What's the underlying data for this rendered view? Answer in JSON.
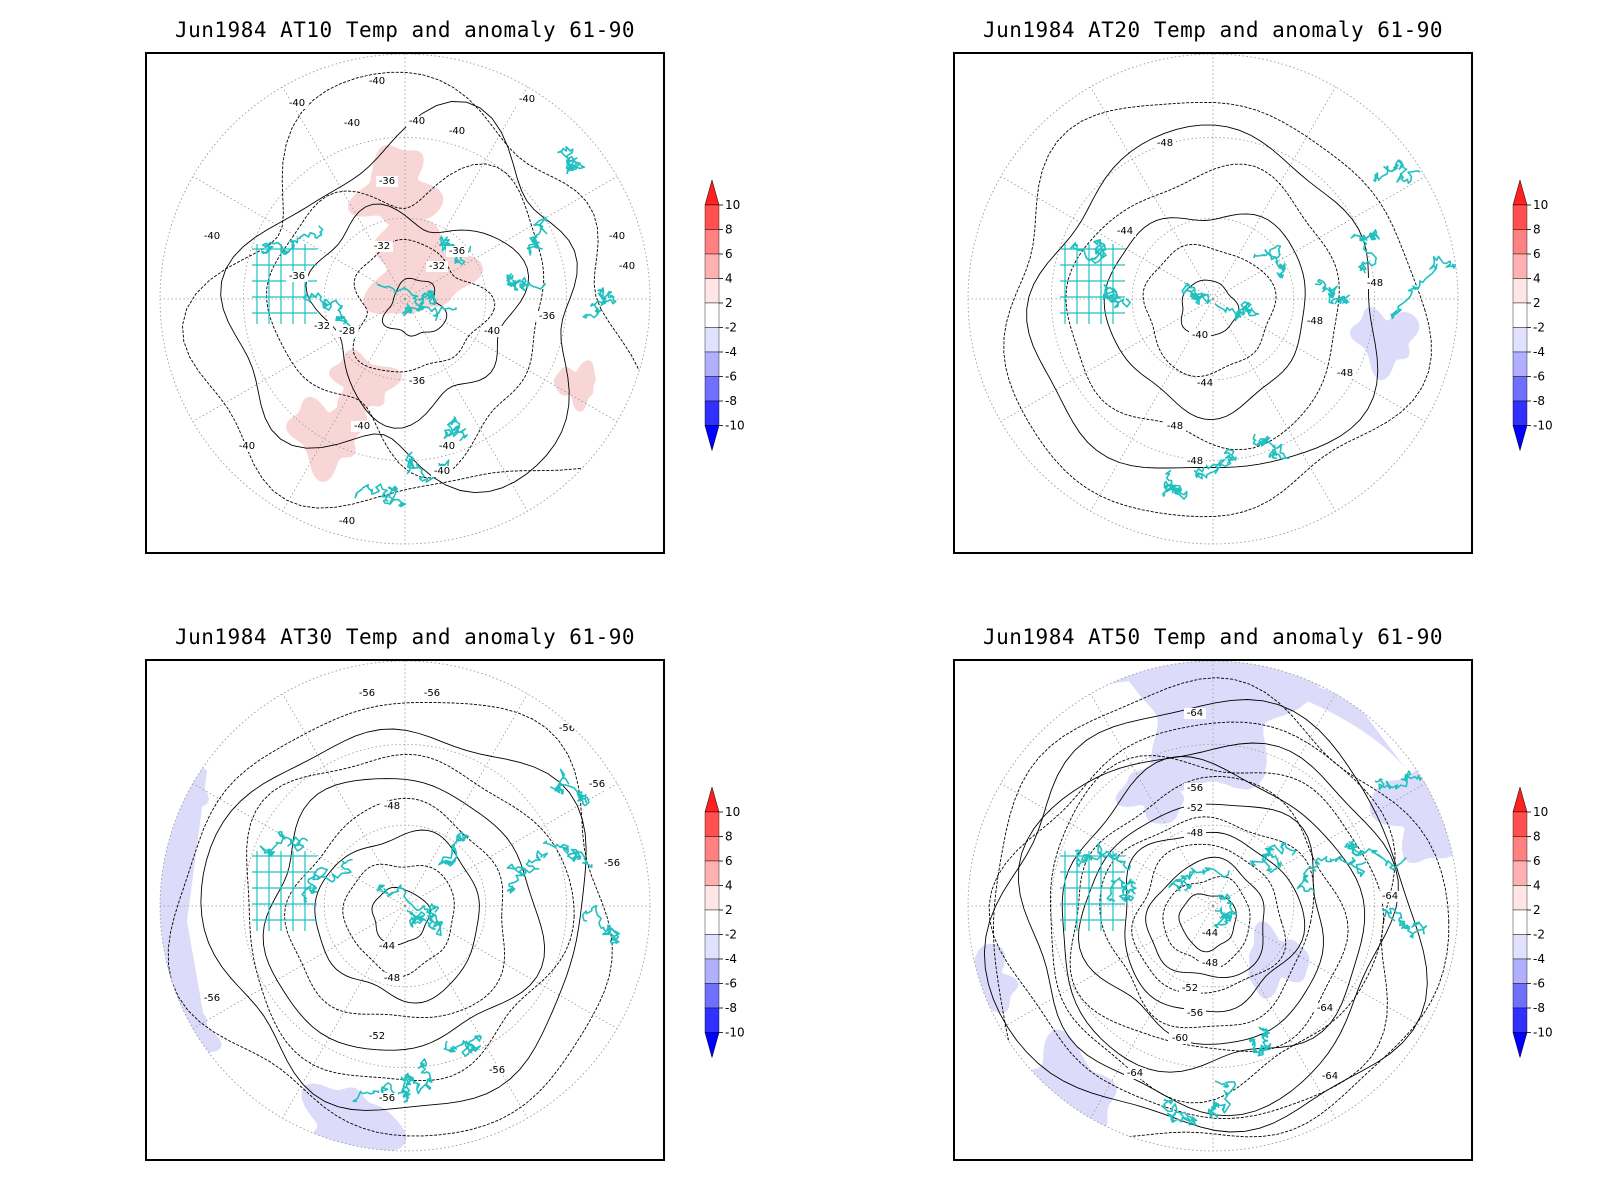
{
  "colors": {
    "coastline": "#20c0c0",
    "contour": "#000000",
    "grid": "#9a9a9a",
    "anomaly_positive_light": "#f8d6d6",
    "anomaly_negative_light": "#dcdcfa"
  },
  "colorbar": {
    "levels": [
      "10",
      "8",
      "6",
      "4",
      "2",
      "-2",
      "-4",
      "-6",
      "-8",
      "-10"
    ],
    "colors": [
      "#ff2020",
      "#ff5050",
      "#ff8080",
      "#ffb0b0",
      "#ffe6e6",
      "#ffffff",
      "#e0e0ff",
      "#b0b0ff",
      "#7070ff",
      "#3030ff",
      "#0000ff"
    ]
  },
  "panels": [
    {
      "title": "Jun1984 AT10 Temp and anomaly 61-90",
      "anomaly_sign": "positive",
      "contour_labels": [
        "-40",
        "-40",
        "-40",
        "-40",
        "-40",
        "-40",
        "-40",
        "-40",
        "-40",
        "-36",
        "-36",
        "-36",
        "-36",
        "-36",
        "-32",
        "-32",
        "-32",
        "-28",
        "-40",
        "-40",
        "-40",
        "-40",
        "-40",
        "-40"
      ]
    },
    {
      "title": "Jun1984 AT20 Temp and anomaly 61-90",
      "anomaly_sign": "negative",
      "contour_labels": [
        "-48",
        "-44",
        "-40",
        "-44",
        "-48",
        "-48",
        "-48",
        "-48",
        "-48"
      ]
    },
    {
      "title": "Jun1984 AT30 Temp and anomaly 61-90",
      "anomaly_sign": "negative",
      "contour_labels": [
        "-56",
        "-56",
        "-56",
        "-56",
        "-56",
        "-48",
        "-44",
        "-48",
        "-56",
        "-52",
        "-56",
        "-56"
      ]
    },
    {
      "title": "Jun1984 AT50 Temp and anomaly 61-90",
      "anomaly_sign": "negative",
      "contour_labels": [
        "-64",
        "-56",
        "-52",
        "-48",
        "-44",
        "-48",
        "-52",
        "-56",
        "-60",
        "-64",
        "-64",
        "-64",
        "-64"
      ]
    }
  ]
}
